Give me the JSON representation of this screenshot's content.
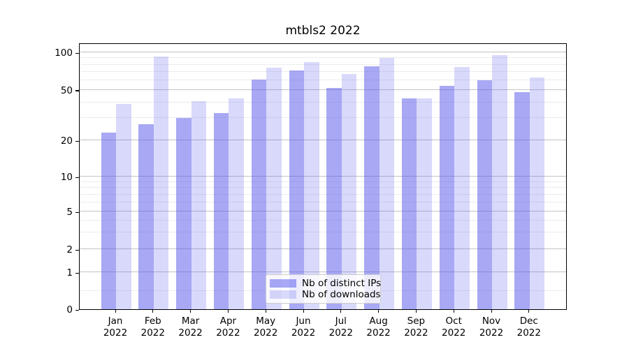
{
  "chart_data": {
    "type": "bar",
    "title": "mtbls2 2022",
    "categories": [
      "Jan 2022",
      "Feb 2022",
      "Mar 2022",
      "Apr 2022",
      "May 2022",
      "Jun 2022",
      "Jul 2022",
      "Aug 2022",
      "Sep 2022",
      "Oct 2022",
      "Nov 2022",
      "Dec 2022"
    ],
    "series": [
      {
        "name": "Nb of distinct IPs",
        "color": "rgba(82,82,235,0.5)",
        "values": [
          23,
          27,
          30,
          33,
          61,
          72,
          52,
          78,
          43,
          54,
          60,
          48
        ]
      },
      {
        "name": "Nb of downloads",
        "color": "rgba(82,82,235,0.22)",
        "values": [
          39,
          93,
          41,
          43,
          76,
          84,
          67,
          90,
          43,
          77,
          95,
          63
        ]
      }
    ],
    "yaxis": {
      "scale": "symlog",
      "major_ticks": [
        0,
        1,
        2,
        5,
        10,
        20,
        50,
        100
      ],
      "minor_ticks": [
        0.5,
        3,
        4,
        6,
        7,
        8,
        9,
        30,
        40,
        60,
        70,
        80,
        90
      ],
      "ylim": [
        0,
        116
      ]
    },
    "xlabel": "",
    "ylabel": "",
    "grid": true,
    "legend_position": "lower center"
  },
  "colors": {
    "major_grid": "#c3c3c3",
    "minor_grid": "#ececec",
    "axis": "#000000",
    "background": "#ffffff"
  }
}
